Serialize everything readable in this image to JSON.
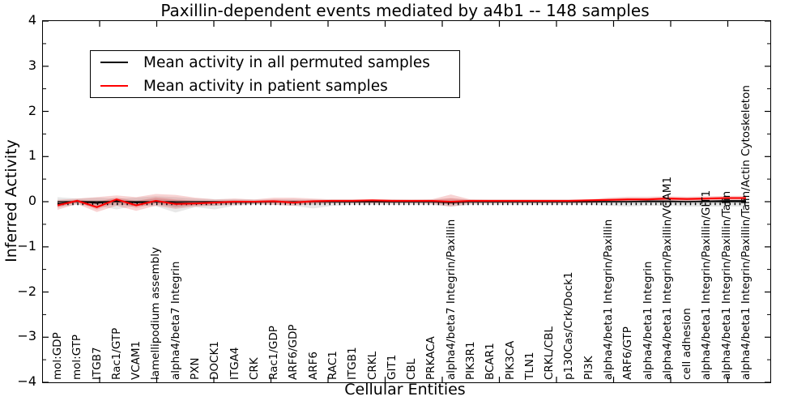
{
  "chart_data": {
    "type": "line",
    "title": "Paxillin-dependent events mediated by a4b1 -- 148 samples",
    "xlabel": "Cellular Entities",
    "ylabel": "Inferred Activity",
    "ylim": [
      -4,
      4
    ],
    "y_ticks": [
      4,
      3,
      2,
      1,
      0,
      -1,
      -2,
      -3,
      -4
    ],
    "y_tick_labels": [
      "4",
      "3",
      "2",
      "1",
      "0",
      "−1",
      "−2",
      "−3",
      "−4"
    ],
    "grid": false,
    "axis_line_at_zero": true,
    "legend_position": "upper left",
    "categories": [
      "mol:GDP",
      "mol:GTP",
      "ITGB7",
      "Rac1/GTP",
      "VCAM1",
      "lamellipodium assembly",
      "alpha4/beta7 Integrin",
      "PXN",
      "DOCK1",
      "ITGA4",
      "CRK",
      "Rac1/GDP",
      "ARF6/GDP",
      "ARF6",
      "RAC1",
      "ITGB1",
      "CRKL",
      "GIT1",
      "CBL",
      "PRKACA",
      "alpha4/beta7 Integrin/Paxillin",
      "PIK3R1",
      "BCAR1",
      "PIK3CA",
      "TLN1",
      "CRKL/CBL",
      "p130Cas/Crk/Dock1",
      "PI3K",
      "alpha4/beta1 Integrin/Paxillin",
      "ARF6/GTP",
      "alpha4/beta1 Integrin",
      "alpha4/beta1 Integrin/Paxillin/VCAM1",
      "cell adhesion",
      "alpha4/beta1 Integrin/Paxillin/GIT1",
      "alpha4/beta1 Integrin/Paxillin/Talin",
      "alpha4/beta1 Integrin/Paxillin/Talin/Actin Cytoskeleton"
    ],
    "series": [
      {
        "name": "Mean activity in all permuted samples",
        "color": "#000000",
        "values": [
          -0.05,
          0.01,
          -0.03,
          0.02,
          -0.02,
          0.0,
          -0.03,
          -0.04,
          -0.02,
          -0.01,
          -0.01,
          0.0,
          -0.01,
          0.0,
          0.0,
          0.0,
          0.0,
          0.0,
          0.0,
          0.0,
          -0.02,
          0.0,
          0.0,
          0.0,
          0.0,
          0.0,
          0.0,
          0.0,
          0.0,
          0.0,
          0.01,
          0.01,
          0.0,
          0.01,
          0.02,
          0.02
        ]
      },
      {
        "name": "Mean activity in patient samples",
        "color": "#ff0000",
        "values": [
          -0.08,
          0.02,
          -0.12,
          0.05,
          -0.08,
          0.02,
          -0.05,
          -0.04,
          -0.02,
          0.0,
          0.0,
          0.01,
          -0.02,
          0.01,
          0.02,
          0.02,
          0.03,
          0.02,
          0.02,
          0.02,
          0.0,
          0.02,
          0.02,
          0.02,
          0.02,
          0.02,
          0.02,
          0.03,
          0.04,
          0.05,
          0.05,
          0.07,
          0.06,
          0.07,
          0.08,
          0.08
        ]
      }
    ],
    "bands": [
      {
        "name": "permuted-samples-spread",
        "color": "rgba(0,0,0,0.09)",
        "upper": [
          0.1,
          0.07,
          0.09,
          0.07,
          0.09,
          0.12,
          0.1,
          0.07,
          0.06,
          0.06,
          0.05,
          0.05,
          0.06,
          0.05,
          0.05,
          0.05,
          0.05,
          0.05,
          0.05,
          0.05,
          0.07,
          0.05,
          0.05,
          0.05,
          0.05,
          0.05,
          0.05,
          0.05,
          0.05,
          0.05,
          0.05,
          0.05,
          0.05,
          0.04,
          0.04,
          0.04
        ],
        "lower": [
          -0.12,
          -0.07,
          -0.09,
          -0.17,
          -0.09,
          -0.1,
          -0.24,
          -0.12,
          -0.17,
          -0.09,
          -0.07,
          -0.07,
          -0.09,
          -0.15,
          -0.09,
          -0.07,
          -0.07,
          -0.07,
          -0.07,
          -0.07,
          -0.11,
          -0.07,
          -0.07,
          -0.07,
          -0.07,
          -0.07,
          -0.07,
          -0.07,
          -0.09,
          -0.11,
          -0.09,
          -0.09,
          -0.11,
          -0.11,
          -0.11,
          -0.11
        ]
      },
      {
        "name": "patient-samples-spread",
        "color": "rgba(221,34,34,0.20)",
        "upper": [
          0.04,
          0.07,
          0.1,
          0.14,
          0.1,
          0.17,
          0.15,
          0.09,
          0.05,
          0.07,
          0.05,
          0.09,
          0.09,
          0.07,
          0.05,
          0.05,
          0.05,
          0.05,
          0.04,
          0.05,
          0.16,
          0.05,
          0.04,
          0.04,
          0.04,
          0.04,
          0.04,
          0.05,
          0.09,
          0.11,
          0.11,
          0.12,
          0.11,
          0.12,
          0.13,
          0.13
        ],
        "lower": [
          -0.18,
          -0.05,
          -0.23,
          -0.09,
          -0.2,
          -0.09,
          -0.16,
          -0.11,
          -0.09,
          -0.07,
          -0.05,
          -0.07,
          -0.09,
          -0.05,
          -0.04,
          -0.04,
          -0.04,
          -0.04,
          -0.04,
          -0.05,
          -0.11,
          -0.05,
          -0.04,
          -0.04,
          -0.04,
          -0.04,
          -0.04,
          -0.03,
          -0.01,
          0.0,
          0.0,
          0.01,
          0.0,
          0.01,
          0.02,
          0.02
        ]
      }
    ]
  }
}
